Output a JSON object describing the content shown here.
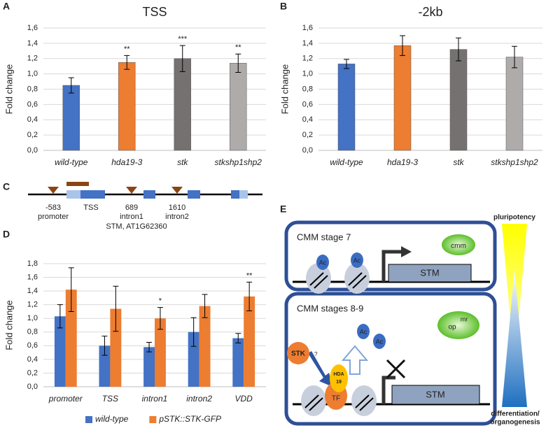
{
  "panel_labels": [
    "A",
    "B",
    "C",
    "D",
    "E"
  ],
  "chart_data": [
    {
      "type": "bar",
      "title": "TSS",
      "y_label": "Fold change",
      "categories": [
        "wild-type",
        "hda19-3",
        "stk",
        "stkshp1shp2"
      ],
      "values": [
        0.85,
        1.15,
        1.2,
        1.14
      ],
      "errors": [
        0.1,
        0.09,
        0.17,
        0.12
      ],
      "colors": [
        "#4472c4",
        "#ed7d31",
        "#767171",
        "#afabab"
      ],
      "annotations": [
        null,
        "**",
        "***",
        "**"
      ],
      "ylim": [
        0,
        1.6
      ],
      "yticks": [
        {
          "value": 0,
          "label": "0,0"
        },
        {
          "value": 0.2,
          "label": "0,2"
        },
        {
          "value": 0.4,
          "label": "0,4"
        },
        {
          "value": 0.6,
          "label": "0,6"
        },
        {
          "value": 0.8,
          "label": "0,8"
        },
        {
          "value": 1,
          "label": "1,0"
        },
        {
          "value": 1.2,
          "label": "1,2"
        },
        {
          "value": 1.4,
          "label": "1,4"
        },
        {
          "value": 1.6,
          "label": "1,6"
        }
      ],
      "grid": true
    },
    {
      "type": "bar",
      "title": "-2kb",
      "y_label": "Fold change",
      "categories": [
        "wild-type",
        "hda19-3",
        "stk",
        "stkshp1shp2"
      ],
      "values": [
        1.13,
        1.37,
        1.32,
        1.22
      ],
      "errors": [
        0.06,
        0.13,
        0.15,
        0.14
      ],
      "colors": [
        "#4472c4",
        "#ed7d31",
        "#767171",
        "#afabab"
      ],
      "ylim": [
        0,
        1.6
      ],
      "yticks": [
        {
          "value": 0,
          "label": "0,0"
        },
        {
          "value": 0.2,
          "label": "0,2"
        },
        {
          "value": 0.4,
          "label": "0,4"
        },
        {
          "value": 0.6,
          "label": "0,6"
        },
        {
          "value": 0.8,
          "label": "0,8"
        },
        {
          "value": 1,
          "label": "1,0"
        },
        {
          "value": 1.2,
          "label": "1,2"
        },
        {
          "value": 1.4,
          "label": "1,4"
        },
        {
          "value": 1.6,
          "label": "1,6"
        }
      ],
      "grid": true
    },
    {
      "type": "grouped_bar",
      "y_label": "Fold change",
      "categories": [
        "promoter",
        "TSS",
        "intron1",
        "intron2",
        "VDD"
      ],
      "series": [
        {
          "name": "wild-type",
          "color": "#4472c4",
          "values": [
            1.03,
            0.6,
            0.58,
            0.8,
            0.71
          ],
          "errors": [
            0.17,
            0.14,
            0.07,
            0.21,
            0.07
          ]
        },
        {
          "name": "pSTK::STK-GFP",
          "color": "#ed7d31",
          "values": [
            1.42,
            1.14,
            1.0,
            1.18,
            1.32
          ],
          "errors": [
            0.32,
            0.33,
            0.16,
            0.17,
            0.21
          ]
        }
      ],
      "annotations": [
        null,
        null,
        "*",
        null,
        "**"
      ],
      "ylim": [
        0,
        1.8
      ],
      "yticks": [
        {
          "value": 0,
          "label": "0,0"
        },
        {
          "value": 0.2,
          "label": "0,2"
        },
        {
          "value": 0.4,
          "label": "0,4"
        },
        {
          "value": 0.6,
          "label": "0,6"
        },
        {
          "value": 0.8,
          "label": "0,8"
        },
        {
          "value": 1,
          "label": "1,0"
        },
        {
          "value": 1.2,
          "label": "1,2"
        },
        {
          "value": 1.4,
          "label": "1,4"
        },
        {
          "value": 1.6,
          "label": "1,6"
        },
        {
          "value": 1.8,
          "label": "1,8"
        }
      ],
      "grid": true,
      "legend": "bottom"
    }
  ],
  "gene_diagram": {
    "sites": [
      {
        "position": "-583",
        "region": "promoter"
      },
      {
        "position": "689",
        "region": "intron1"
      },
      {
        "position": "1610",
        "region": "intron2"
      }
    ],
    "tss": "TSS",
    "gene": "STM, AT1G62360"
  },
  "model_diagram": {
    "top": {
      "stage": "CMM stage 7",
      "meristem": "cmm",
      "marks": [
        "Ac",
        "Ac"
      ],
      "gene": "STM"
    },
    "bottom": {
      "stage": "CMM stages 8-9",
      "meristem": [
        "op",
        "mr"
      ],
      "marks": [
        "Ac",
        "Ac"
      ],
      "factor": "STK",
      "question": "?",
      "hda": [
        "HDA",
        "19"
      ],
      "tf": "TF",
      "gene": "STM"
    },
    "gradient": {
      "top": "pluripotency",
      "bottom": [
        "differentiation/",
        "organogenesis"
      ]
    }
  }
}
